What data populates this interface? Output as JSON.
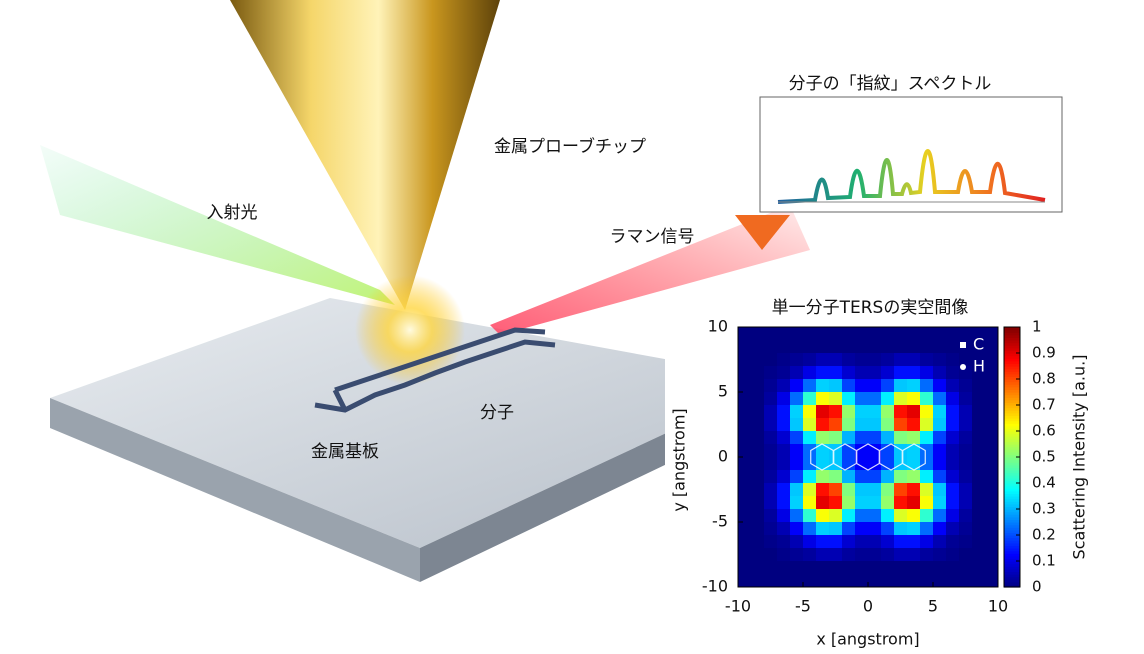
{
  "labels": {
    "incident_light": "入射光",
    "probe_tip": "金属プローブチップ",
    "raman_signal": "ラマン信号",
    "molecule": "分子",
    "substrate": "金属基板"
  },
  "spectrum": {
    "title": "分子の「指紋」スペクトル"
  },
  "chart_data": {
    "type": "heatmap",
    "title": "単一分子TERSの実空間像",
    "x_label": "x [angstrom]",
    "y_label": "y [angstrom]",
    "colorbar_label": "Scattering Intensity [a.u.]",
    "xlim": [
      -10,
      10
    ],
    "ylim": [
      -10,
      10
    ],
    "xticks": [
      -10,
      -5,
      0,
      5,
      10
    ],
    "yticks": [
      -10,
      -5,
      0,
      5,
      10
    ],
    "zlim": [
      0,
      1
    ],
    "zticks": [
      0,
      0.1,
      0.2,
      0.3,
      0.4,
      0.5,
      0.6,
      0.7,
      0.8,
      0.9,
      1
    ],
    "colormap": "jet",
    "legend": [
      {
        "name": "C",
        "marker": "square"
      },
      {
        "name": "H",
        "marker": "circle"
      }
    ],
    "values": [
      [
        0,
        0,
        0,
        0,
        0,
        0,
        0,
        0,
        0,
        0,
        0,
        0,
        0,
        0,
        0,
        0,
        0,
        0,
        0,
        0
      ],
      [
        0,
        0,
        0,
        0,
        0,
        0,
        0,
        0,
        0,
        0,
        0,
        0,
        0,
        0,
        0,
        0,
        0,
        0,
        0,
        0
      ],
      [
        0,
        0,
        0,
        0.01,
        0.02,
        0.03,
        0.05,
        0.05,
        0.03,
        0.02,
        0.02,
        0.03,
        0.05,
        0.05,
        0.03,
        0.02,
        0.01,
        0,
        0,
        0
      ],
      [
        0,
        0,
        0.01,
        0.02,
        0.05,
        0.1,
        0.14,
        0.14,
        0.08,
        0.05,
        0.05,
        0.08,
        0.14,
        0.14,
        0.1,
        0.05,
        0.02,
        0.01,
        0,
        0
      ],
      [
        0,
        0,
        0.02,
        0.05,
        0.12,
        0.23,
        0.33,
        0.32,
        0.19,
        0.12,
        0.12,
        0.19,
        0.32,
        0.33,
        0.23,
        0.12,
        0.05,
        0.02,
        0,
        0
      ],
      [
        0,
        0,
        0.03,
        0.1,
        0.23,
        0.42,
        0.62,
        0.59,
        0.36,
        0.23,
        0.23,
        0.36,
        0.59,
        0.62,
        0.42,
        0.23,
        0.1,
        0.03,
        0,
        0
      ],
      [
        0,
        0,
        0.05,
        0.14,
        0.33,
        0.62,
        0.9,
        0.86,
        0.52,
        0.33,
        0.33,
        0.52,
        0.86,
        0.9,
        0.62,
        0.33,
        0.14,
        0.05,
        0,
        0
      ],
      [
        0,
        0,
        0.05,
        0.14,
        0.32,
        0.59,
        0.86,
        0.81,
        0.5,
        0.32,
        0.32,
        0.5,
        0.81,
        0.86,
        0.59,
        0.32,
        0.14,
        0.05,
        0,
        0
      ],
      [
        0,
        0,
        0.03,
        0.08,
        0.19,
        0.36,
        0.52,
        0.5,
        0.3,
        0.19,
        0.19,
        0.3,
        0.5,
        0.52,
        0.36,
        0.19,
        0.08,
        0.03,
        0,
        0
      ],
      [
        0,
        0,
        0.02,
        0.05,
        0.12,
        0.23,
        0.33,
        0.32,
        0.19,
        0.12,
        0.12,
        0.19,
        0.32,
        0.33,
        0.23,
        0.12,
        0.05,
        0.02,
        0,
        0
      ],
      [
        0,
        0,
        0.02,
        0.05,
        0.12,
        0.23,
        0.33,
        0.32,
        0.19,
        0.12,
        0.12,
        0.19,
        0.32,
        0.33,
        0.23,
        0.12,
        0.05,
        0.02,
        0,
        0
      ],
      [
        0,
        0,
        0.03,
        0.08,
        0.19,
        0.36,
        0.52,
        0.5,
        0.3,
        0.19,
        0.19,
        0.3,
        0.5,
        0.52,
        0.36,
        0.19,
        0.08,
        0.03,
        0,
        0
      ],
      [
        0,
        0,
        0.05,
        0.14,
        0.32,
        0.59,
        0.86,
        0.81,
        0.5,
        0.32,
        0.32,
        0.5,
        0.81,
        0.86,
        0.59,
        0.32,
        0.14,
        0.05,
        0,
        0
      ],
      [
        0,
        0,
        0.05,
        0.14,
        0.33,
        0.62,
        0.9,
        0.86,
        0.52,
        0.33,
        0.33,
        0.52,
        0.86,
        0.9,
        0.62,
        0.33,
        0.14,
        0.05,
        0,
        0
      ],
      [
        0,
        0,
        0.03,
        0.1,
        0.23,
        0.42,
        0.62,
        0.59,
        0.36,
        0.23,
        0.23,
        0.36,
        0.59,
        0.62,
        0.42,
        0.23,
        0.1,
        0.03,
        0,
        0
      ],
      [
        0,
        0,
        0.02,
        0.05,
        0.12,
        0.23,
        0.33,
        0.32,
        0.19,
        0.12,
        0.12,
        0.19,
        0.32,
        0.33,
        0.23,
        0.12,
        0.05,
        0.02,
        0,
        0
      ],
      [
        0,
        0,
        0.01,
        0.02,
        0.05,
        0.1,
        0.14,
        0.14,
        0.08,
        0.05,
        0.05,
        0.08,
        0.14,
        0.14,
        0.1,
        0.05,
        0.02,
        0.01,
        0,
        0
      ],
      [
        0,
        0,
        0,
        0.01,
        0.02,
        0.03,
        0.05,
        0.05,
        0.03,
        0.02,
        0.02,
        0.03,
        0.05,
        0.05,
        0.03,
        0.02,
        0.01,
        0,
        0,
        0
      ],
      [
        0,
        0,
        0,
        0,
        0,
        0,
        0,
        0,
        0,
        0,
        0,
        0,
        0,
        0,
        0,
        0,
        0,
        0,
        0,
        0
      ],
      [
        0,
        0,
        0,
        0,
        0,
        0,
        0,
        0,
        0,
        0,
        0,
        0,
        0,
        0,
        0,
        0,
        0,
        0,
        0,
        0
      ]
    ]
  }
}
